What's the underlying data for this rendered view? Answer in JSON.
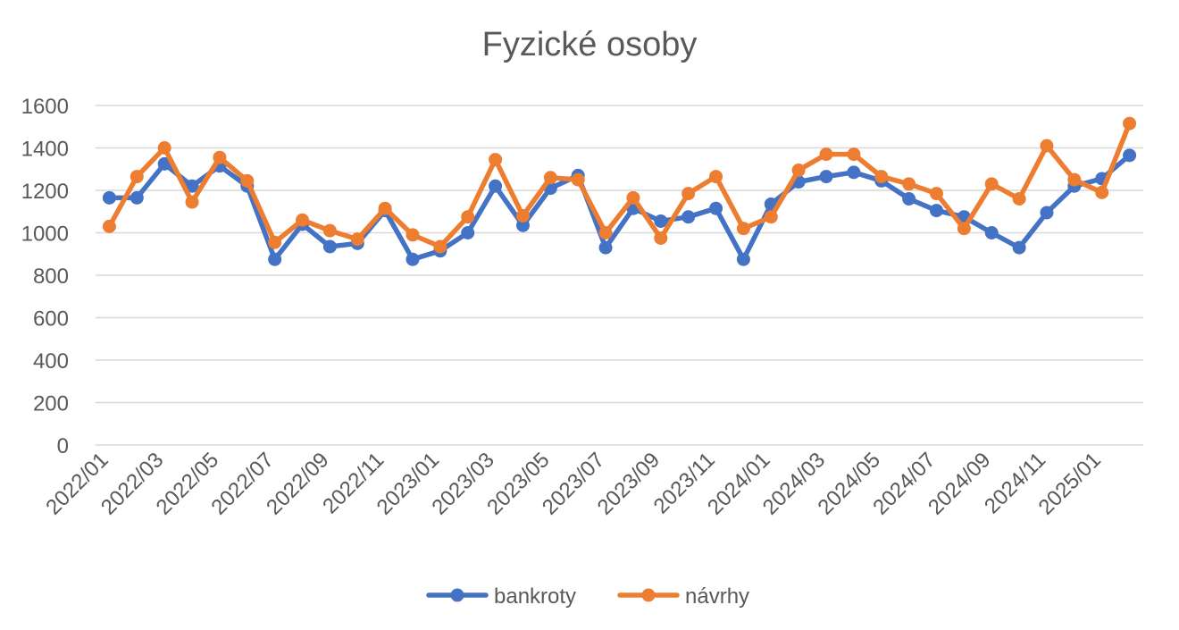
{
  "chart_data": {
    "type": "line",
    "title": "Fyzické osoby",
    "x": [
      "2022/01",
      "2022/02",
      "2022/03",
      "2022/04",
      "2022/05",
      "2022/06",
      "2022/07",
      "2022/08",
      "2022/09",
      "2022/10",
      "2022/11",
      "2022/12",
      "2023/01",
      "2023/02",
      "2023/03",
      "2023/04",
      "2023/05",
      "2023/06",
      "2023/07",
      "2023/08",
      "2023/09",
      "2023/10",
      "2023/11",
      "2023/12",
      "2024/01",
      "2024/02",
      "2024/03",
      "2024/04",
      "2024/05",
      "2024/06",
      "2024/07",
      "2024/08",
      "2024/09",
      "2024/10",
      "2024/11",
      "2024/12",
      "2025/01",
      "2025/02"
    ],
    "x_tick_labels": [
      "2022/01",
      "2022/03",
      "2022/05",
      "2022/07",
      "2022/09",
      "2022/11",
      "2023/01",
      "2023/03",
      "2023/05",
      "2023/07",
      "2023/09",
      "2023/11",
      "2024/01",
      "2024/03",
      "2024/05",
      "2024/07",
      "2024/09",
      "2024/11",
      "2025/01"
    ],
    "y_ticks": [
      0,
      200,
      400,
      600,
      800,
      1000,
      1200,
      1400,
      1600
    ],
    "ylim": [
      0,
      1600
    ],
    "grid": true,
    "legend_position": "bottom",
    "series": [
      {
        "name": "bankroty",
        "color": "#4472C4",
        "values": [
          1165,
          1165,
          1325,
          1220,
          1315,
          1220,
          875,
          1040,
          935,
          950,
          1105,
          875,
          915,
          1000,
          1220,
          1035,
          1210,
          1270,
          930,
          1115,
          1055,
          1075,
          1115,
          875,
          1135,
          1240,
          1265,
          1285,
          1245,
          1160,
          1105,
          1075,
          1000,
          930,
          1095,
          1220,
          1255,
          1365
        ]
      },
      {
        "name": "návrhy",
        "color": "#ED7D31",
        "values": [
          1030,
          1265,
          1400,
          1145,
          1355,
          1245,
          955,
          1060,
          1010,
          970,
          1115,
          990,
          935,
          1075,
          1345,
          1080,
          1260,
          1250,
          1000,
          1165,
          975,
          1185,
          1265,
          1020,
          1075,
          1295,
          1370,
          1370,
          1265,
          1230,
          1185,
          1020,
          1230,
          1160,
          1410,
          1250,
          1190,
          1515
        ]
      }
    ]
  }
}
